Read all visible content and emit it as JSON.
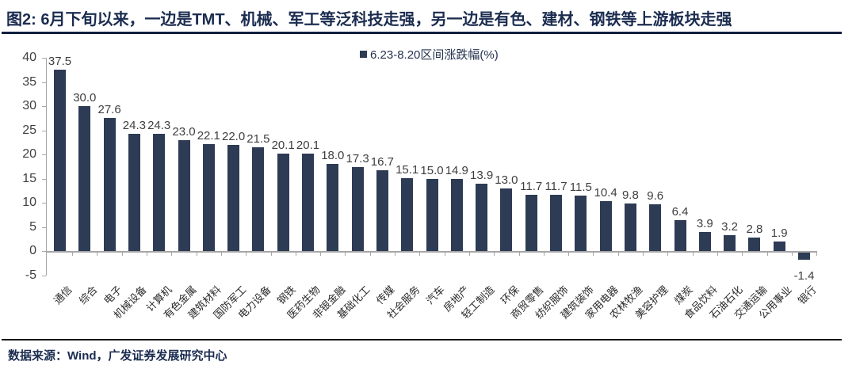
{
  "header": {
    "title": "图2:  6月下旬以来，一边是TMT、机械、军工等泛科技走强，另一边是有色、建材、钢铁等上游板块走强"
  },
  "legend": {
    "label": "6.23-8.20区间涨跌幅(%)"
  },
  "footer": {
    "source": "数据来源：Wind，广发证券发展研究中心"
  },
  "colors": {
    "bar": "#2d3b54",
    "axis": "#a6a6a6",
    "title": "#1b2c50",
    "value_label": "#3f3f3f"
  },
  "chart_data": {
    "type": "bar",
    "title": "6.23-8.20区间涨跌幅(%)",
    "xlabel": "",
    "ylabel": "",
    "categories": [
      "通信",
      "综合",
      "电子",
      "机械设备",
      "计算机",
      "有色金属",
      "建筑材料",
      "国防军工",
      "电力设备",
      "钢铁",
      "医药生物",
      "非银金融",
      "基础化工",
      "传媒",
      "社会服务",
      "汽车",
      "房地产",
      "轻工制造",
      "环保",
      "商贸零售",
      "纺织服饰",
      "建筑装饰",
      "家用电器",
      "农林牧渔",
      "美容护理",
      "煤炭",
      "食品饮料",
      "石油石化",
      "交通运输",
      "公用事业",
      "银行"
    ],
    "values": [
      37.5,
      30.0,
      27.6,
      24.3,
      24.3,
      23.0,
      22.1,
      22.0,
      21.5,
      20.1,
      20.1,
      18.0,
      17.3,
      16.7,
      15.1,
      15.0,
      14.9,
      13.9,
      13.0,
      11.7,
      11.7,
      11.5,
      10.4,
      9.8,
      9.6,
      6.4,
      3.9,
      3.2,
      2.8,
      1.9,
      -1.4
    ],
    "ylim": [
      -5,
      40
    ],
    "yticks": [
      40,
      35,
      30,
      25,
      20,
      15,
      10,
      5,
      0,
      -5
    ],
    "grid": false,
    "legend_position": "top-center",
    "value_labels": true,
    "x_label_rotation": 45
  }
}
